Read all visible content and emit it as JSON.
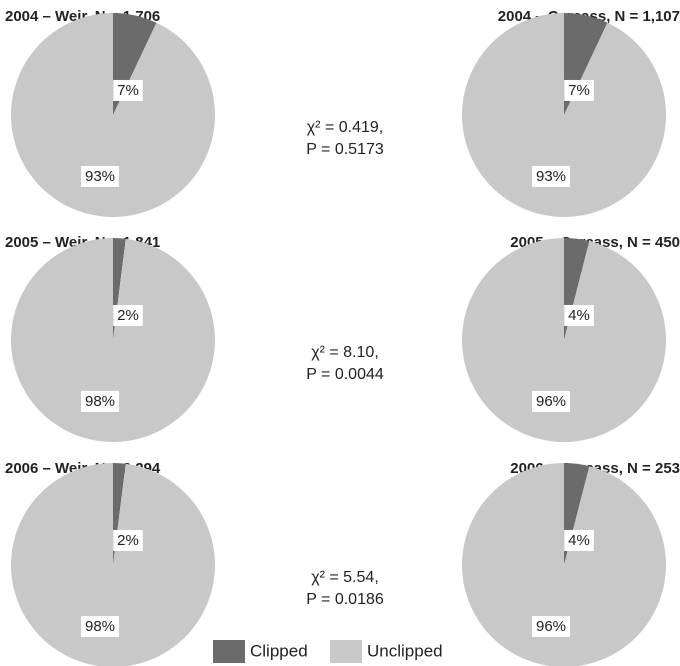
{
  "chart_data": [
    {
      "type": "pie",
      "title": "2004 – Weir, N = 1,706",
      "categories": [
        "Clipped",
        "Unclipped"
      ],
      "values": [
        7,
        93
      ],
      "value_labels": [
        "7%",
        "93%"
      ],
      "colors": [
        "#6b6b6b",
        "#c8c8c8"
      ]
    },
    {
      "type": "pie",
      "title": "2004 – Carcass, N = 1,107",
      "categories": [
        "Clipped",
        "Unclipped"
      ],
      "values": [
        7,
        93
      ],
      "value_labels": [
        "7%",
        "93%"
      ],
      "colors": [
        "#6b6b6b",
        "#c8c8c8"
      ]
    },
    {
      "type": "pie",
      "title": "2005 – Weir, N = 1,841",
      "categories": [
        "Clipped",
        "Unclipped"
      ],
      "values": [
        2,
        98
      ],
      "value_labels": [
        "2%",
        "98%"
      ],
      "colors": [
        "#6b6b6b",
        "#c8c8c8"
      ]
    },
    {
      "type": "pie",
      "title": "2005 – Carcass, N = 450",
      "categories": [
        "Clipped",
        "Unclipped"
      ],
      "values": [
        4,
        96
      ],
      "value_labels": [
        "4%",
        "96%"
      ],
      "colors": [
        "#6b6b6b",
        "#c8c8c8"
      ]
    },
    {
      "type": "pie",
      "title": "2006 – Weir, N = 2,294",
      "categories": [
        "Clipped",
        "Unclipped"
      ],
      "values": [
        2,
        98
      ],
      "value_labels": [
        "2%",
        "98%"
      ],
      "colors": [
        "#6b6b6b",
        "#c8c8c8"
      ]
    },
    {
      "type": "pie",
      "title": "2006 – Carcass, N = 253",
      "categories": [
        "Clipped",
        "Unclipped"
      ],
      "values": [
        4,
        96
      ],
      "value_labels": [
        "4%",
        "96%"
      ],
      "colors": [
        "#6b6b6b",
        "#c8c8c8"
      ]
    }
  ],
  "annotations": [
    [
      "χ² = 0.419,",
      "P = 0.5173"
    ],
    [
      "χ² = 8.10,",
      "P = 0.0044"
    ],
    [
      "χ² = 5.54,",
      "P = 0.0186"
    ]
  ]
}
